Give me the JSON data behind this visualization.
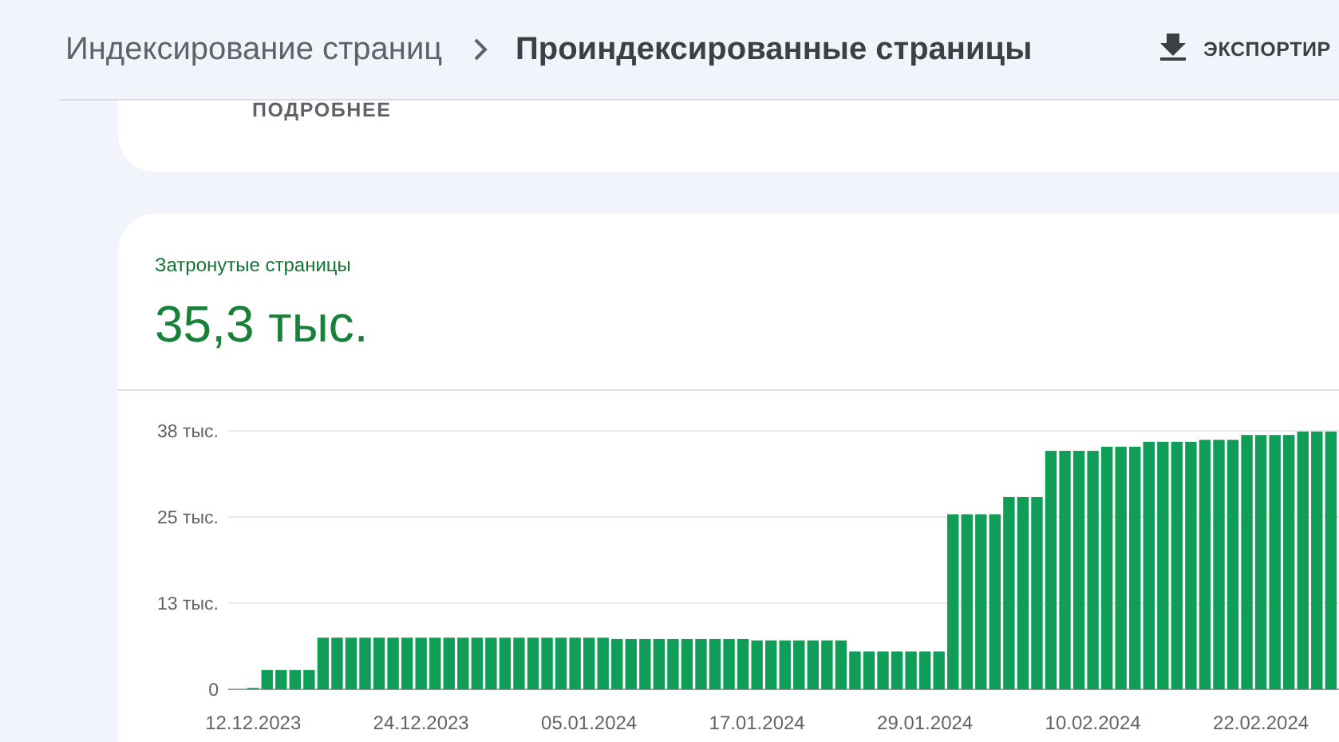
{
  "chart_data": {
    "type": "bar",
    "title": "Проиндексированные страницы",
    "subtitle": "Затронутые страницы",
    "annotations": [
      "Индексирование страниц",
      "ЭКСПОРТИР",
      "ПОДРОБНЕЕ",
      "35,3 тыс."
    ],
    "categories": [
      "12.12.2023",
      null,
      null,
      null,
      null,
      null,
      null,
      null,
      null,
      null,
      null,
      null,
      "24.12.2023",
      null,
      null,
      null,
      null,
      null,
      null,
      null,
      null,
      null,
      null,
      null,
      "05.01.2024",
      null,
      null,
      null,
      null,
      null,
      null,
      null,
      null,
      null,
      null,
      null,
      "17.01.2024",
      null,
      null,
      null,
      null,
      null,
      null,
      null,
      null,
      null,
      null,
      null,
      "29.01.2024",
      null,
      null,
      null,
      null,
      null,
      null,
      null,
      null,
      null,
      null,
      null,
      "10.02.2024",
      null,
      null,
      null,
      null,
      null,
      null,
      null,
      null,
      null,
      null,
      null,
      "22.02.2024",
      null,
      null,
      null,
      null,
      null
    ],
    "values": [
      0.2,
      2.8,
      2.8,
      2.8,
      2.8,
      7.5,
      7.5,
      7.5,
      7.5,
      7.5,
      7.5,
      7.5,
      7.5,
      7.5,
      7.5,
      7.5,
      7.5,
      7.5,
      7.5,
      7.5,
      7.5,
      7.5,
      7.5,
      7.5,
      7.5,
      7.5,
      7.3,
      7.3,
      7.3,
      7.3,
      7.3,
      7.3,
      7.3,
      7.3,
      7.3,
      7.3,
      7.1,
      7.1,
      7.1,
      7.1,
      7.1,
      7.1,
      7.1,
      5.5,
      5.5,
      5.5,
      5.5,
      5.5,
      5.5,
      5.5,
      25.4,
      25.4,
      25.4,
      25.4,
      27.9,
      27.9,
      27.9,
      34.6,
      34.6,
      34.6,
      34.6,
      35.2,
      35.2,
      35.2,
      35.9,
      35.9,
      35.9,
      35.9,
      36.2,
      36.2,
      36.2,
      36.9,
      36.9,
      36.9,
      36.9,
      37.4,
      37.4,
      37.4
    ],
    "color": "#0f9d58",
    "ylim": [
      0,
      37.5
    ],
    "yticks": [
      0,
      {
        "value": 12.5,
        "label": "13 тыс."
      },
      {
        "value": 25,
        "label": "25 тыс."
      },
      {
        "value": 37.5,
        "label": "38 тыс."
      }
    ],
    "grid": "y"
  }
}
